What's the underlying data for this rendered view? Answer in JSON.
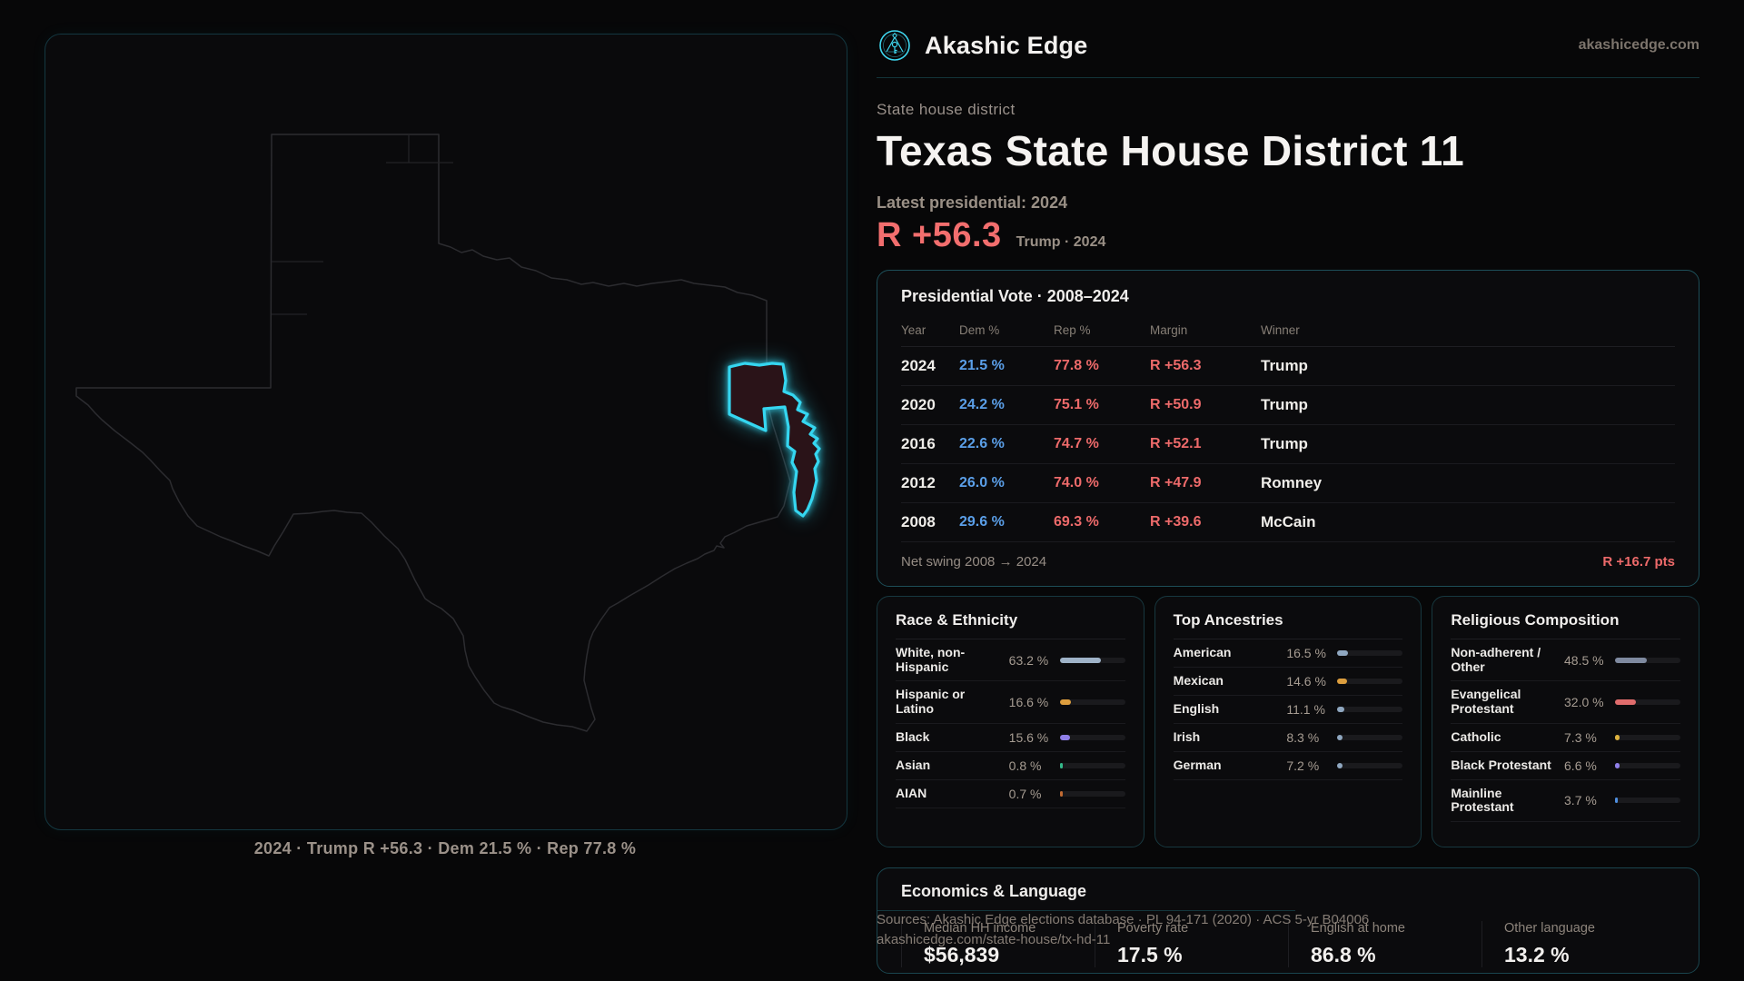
{
  "brand": {
    "name": "Akashic Edge",
    "site": "akashicedge.com"
  },
  "page": {
    "kicker": "State house district",
    "title": "Texas State House District 11",
    "latest_label": "Latest presidential: 2024",
    "margin_value": "R +56.3",
    "margin_caption": "Trump · 2024"
  },
  "map": {
    "caption": "2024 · Trump R +56.3 · Dem 21.5 % · Rep 77.8 %"
  },
  "table": {
    "title": "Presidential Vote · 2008–2024",
    "columns": {
      "year": "Year",
      "dem": "Dem %",
      "rep": "Rep %",
      "margin": "Margin",
      "winner": "Winner"
    },
    "rows": [
      {
        "year": "2024",
        "dem": "21.5 %",
        "rep": "77.8 %",
        "margin": "R +56.3",
        "winner": "Trump"
      },
      {
        "year": "2020",
        "dem": "24.2 %",
        "rep": "75.1 %",
        "margin": "R +50.9",
        "winner": "Trump"
      },
      {
        "year": "2016",
        "dem": "22.6 %",
        "rep": "74.7 %",
        "margin": "R +52.1",
        "winner": "Trump"
      },
      {
        "year": "2012",
        "dem": "26.0 %",
        "rep": "74.0 %",
        "margin": "R +47.9",
        "winner": "Romney"
      },
      {
        "year": "2008",
        "dem": "29.6 %",
        "rep": "69.3 %",
        "margin": "R +39.6",
        "winner": "McCain"
      }
    ],
    "net_swing_label": "Net swing 2008 → 2024",
    "net_swing_value": "R +16.7 pts"
  },
  "panels": [
    {
      "title": "Race & Ethnicity",
      "rows": [
        {
          "label": "White, non-Hispanic",
          "value": "63.2 %",
          "pct": 63.2,
          "color": "#9fb3c8"
        },
        {
          "label": "Hispanic or Latino",
          "value": "16.6 %",
          "pct": 16.6,
          "color": "#dd9e3e"
        },
        {
          "label": "Black",
          "value": "15.6 %",
          "pct": 15.6,
          "color": "#8f7fe8"
        },
        {
          "label": "Asian",
          "value": "0.8 %",
          "pct": 0.8,
          "color": "#34b88a"
        },
        {
          "label": "AIAN",
          "value": "0.7 %",
          "pct": 0.7,
          "color": "#c06a32"
        }
      ]
    },
    {
      "title": "Top Ancestries",
      "rows": [
        {
          "label": "American",
          "value": "16.5 %",
          "pct": 16.5,
          "color": "#8fa7c0"
        },
        {
          "label": "Mexican",
          "value": "14.6 %",
          "pct": 14.6,
          "color": "#dd9e3e"
        },
        {
          "label": "English",
          "value": "11.1 %",
          "pct": 11.1,
          "color": "#8fa7c0"
        },
        {
          "label": "Irish",
          "value": "8.3 %",
          "pct": 8.3,
          "color": "#8fa7c0"
        },
        {
          "label": "German",
          "value": "7.2 %",
          "pct": 7.2,
          "color": "#8fa7c0"
        }
      ]
    },
    {
      "title": "Religious Composition",
      "rows": [
        {
          "label": "Non-adherent / Other",
          "value": "48.5 %",
          "pct": 48.5,
          "color": "#7f8aa0"
        },
        {
          "label": "Evangelical Protestant",
          "value": "32.0 %",
          "pct": 32.0,
          "color": "#e06c6c"
        },
        {
          "label": "Catholic",
          "value": "7.3 %",
          "pct": 7.3,
          "color": "#ddb23e"
        },
        {
          "label": "Black Protestant",
          "value": "6.6 %",
          "pct": 6.6,
          "color": "#8f7fe8"
        },
        {
          "label": "Mainline Protestant",
          "value": "3.7 %",
          "pct": 3.7,
          "color": "#4f8fe0"
        }
      ]
    }
  ],
  "economics": {
    "title": "Economics & Language",
    "stats": [
      {
        "label": "Median HH income",
        "value": "$56,839"
      },
      {
        "label": "Poverty rate",
        "value": "17.5 %"
      },
      {
        "label": "English at home",
        "value": "86.8 %"
      },
      {
        "label": "Other language",
        "value": "13.2 %"
      }
    ]
  },
  "footer": {
    "line1": "Sources: Akashic Edge elections database · PL 94-171 (2020) · ACS 5-yr B04006",
    "line2": "akashicedge.com/state-house/tx-hd-11"
  },
  "colors": {
    "accent_cyan": "#35d6f0",
    "dem_blue": "#5b9fe8",
    "rep_red": "#ed6a6a",
    "margin_red": "#f26e6e",
    "district_fill": "#2a1318"
  }
}
